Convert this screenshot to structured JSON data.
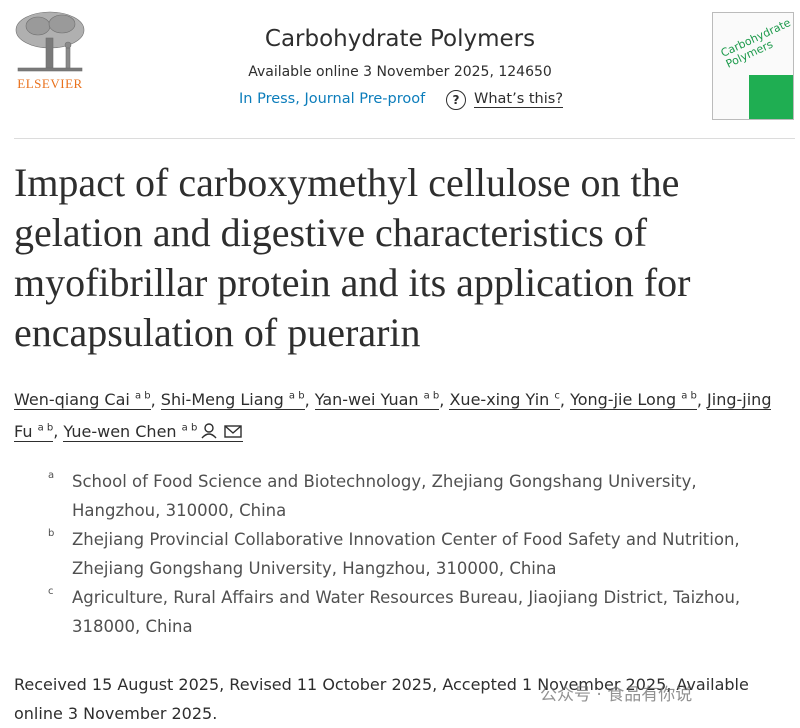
{
  "header": {
    "publisher": "ELSEVIER",
    "journal": "Carbohydrate Polymers",
    "availability": "Available online 3 November 2025, 124650",
    "status": "In Press, Journal Pre-proof",
    "help_icon": "?",
    "help_link": "What’s this?",
    "cover_title": "Carbohydrate Polymers"
  },
  "article": {
    "title_lines": [
      "Impact of carboxymethyl cellulose on the",
      "gelation and digestive characteristics of",
      "myofibrillar protein and its application for",
      "encapsulation of puerarin"
    ],
    "authors": [
      {
        "name": "Wen-qiang Cai",
        "sup": "a b",
        "sep": ","
      },
      {
        "name": "Shi-Meng Liang",
        "sup": "a b",
        "sep": ","
      },
      {
        "name": "Yan-wei Yuan",
        "sup": "a b",
        "sep": ","
      },
      {
        "name": "Xue-xing Yin",
        "sup": "c",
        "sep": ","
      },
      {
        "name": "Yong-jie Long",
        "sup": "a b",
        "sep": ","
      },
      {
        "name": "Jing-jing Fu",
        "sup": "a b",
        "sep": ","
      },
      {
        "name": "Yue-wen Chen",
        "sup": "a b"
      }
    ],
    "affiliations": [
      {
        "label": "a",
        "text": "School of Food Science and Biotechnology, Zhejiang Gongshang University, Hangzhou, 310000, China"
      },
      {
        "label": "b",
        "text": "Zhejiang Provincial Collaborative Innovation Center of Food Safety and Nutrition, Zhejiang Gongshang University, Hangzhou, 310000, China"
      },
      {
        "label": "c",
        "text": "Agriculture, Rural Affairs and Water Resources Bureau, Jiaojiang District, Taizhou, 318000, China"
      }
    ],
    "history": "Received 15 August 2025, Revised 11 October 2025, Accepted 1 November 2025, Available online 3 November 2025."
  },
  "watermark": "公众号 · 食品有你说"
}
